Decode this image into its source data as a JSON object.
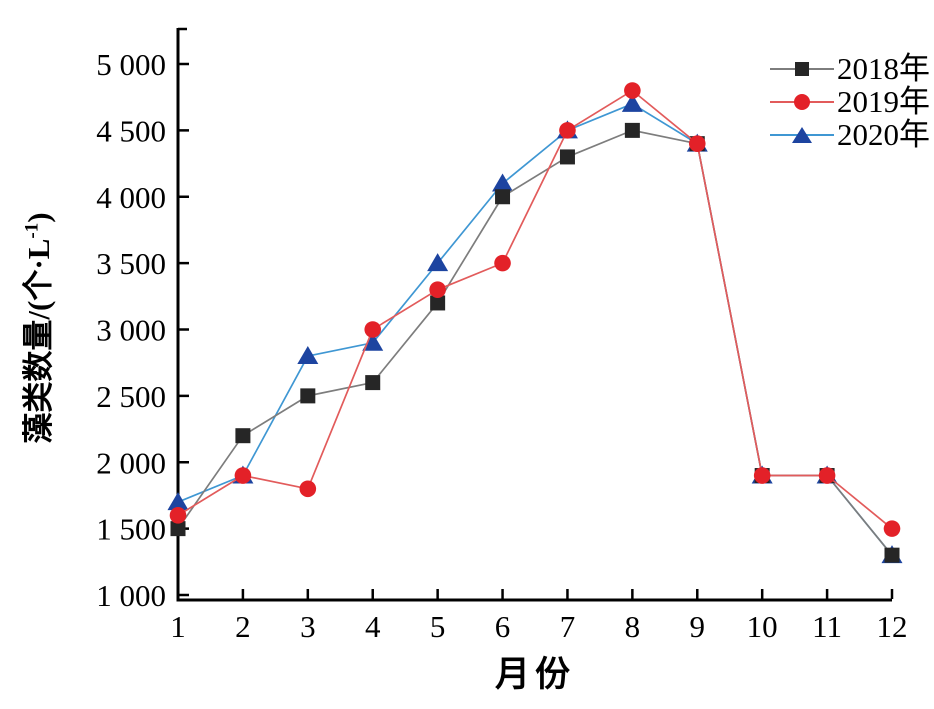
{
  "chart_data": {
    "type": "line",
    "title": "",
    "xlabel": "月份",
    "ylabel": "藻类数量/(个·L⁻¹)",
    "ylabel_parts": {
      "base": "藻类数量/(个·L",
      "sup": "-1",
      "close": ")"
    },
    "x": [
      1,
      2,
      3,
      4,
      5,
      6,
      7,
      8,
      9,
      10,
      11,
      12
    ],
    "x_tick_labels": [
      "1",
      "2",
      "3",
      "4",
      "5",
      "6",
      "7",
      "8",
      "9",
      "10",
      "11",
      "12"
    ],
    "y_ticks": [
      {
        "value": 1000,
        "label": "1 000"
      },
      {
        "value": 1500,
        "label": "1 500"
      },
      {
        "value": 2000,
        "label": "2 000"
      },
      {
        "value": 2500,
        "label": "2 500"
      },
      {
        "value": 3000,
        "label": "3 000"
      },
      {
        "value": 3500,
        "label": "3 500"
      },
      {
        "value": 4000,
        "label": "4 000"
      },
      {
        "value": 4500,
        "label": "4 500"
      },
      {
        "value": 5000,
        "label": "5 000"
      }
    ],
    "xlim": [
      1,
      12
    ],
    "ylim": [
      1000,
      5000
    ],
    "grid": false,
    "legend_position": "top-right",
    "axis_color": "#000000",
    "series": [
      {
        "name": "2018年",
        "marker": "square",
        "marker_color": "#262626",
        "line_color": "#7d7d7d",
        "values": [
          1500,
          2200,
          2500,
          2600,
          3200,
          4000,
          4300,
          4500,
          4400,
          1900,
          1900,
          1300
        ]
      },
      {
        "name": "2019年",
        "marker": "circle",
        "marker_color": "#e32128",
        "line_color": "#e25b5b",
        "values": [
          1600,
          1900,
          1800,
          3000,
          3300,
          3500,
          4500,
          4800,
          4400,
          1900,
          1900,
          1500
        ]
      },
      {
        "name": "2020年",
        "marker": "triangle",
        "marker_color": "#1d44a0",
        "line_color": "#3f97d3",
        "values": [
          1700,
          1900,
          2800,
          2900,
          3500,
          4100,
          4500,
          4700,
          4400,
          1900,
          1900,
          1300
        ]
      }
    ],
    "draw_order": [
      2,
      0,
      1
    ]
  }
}
